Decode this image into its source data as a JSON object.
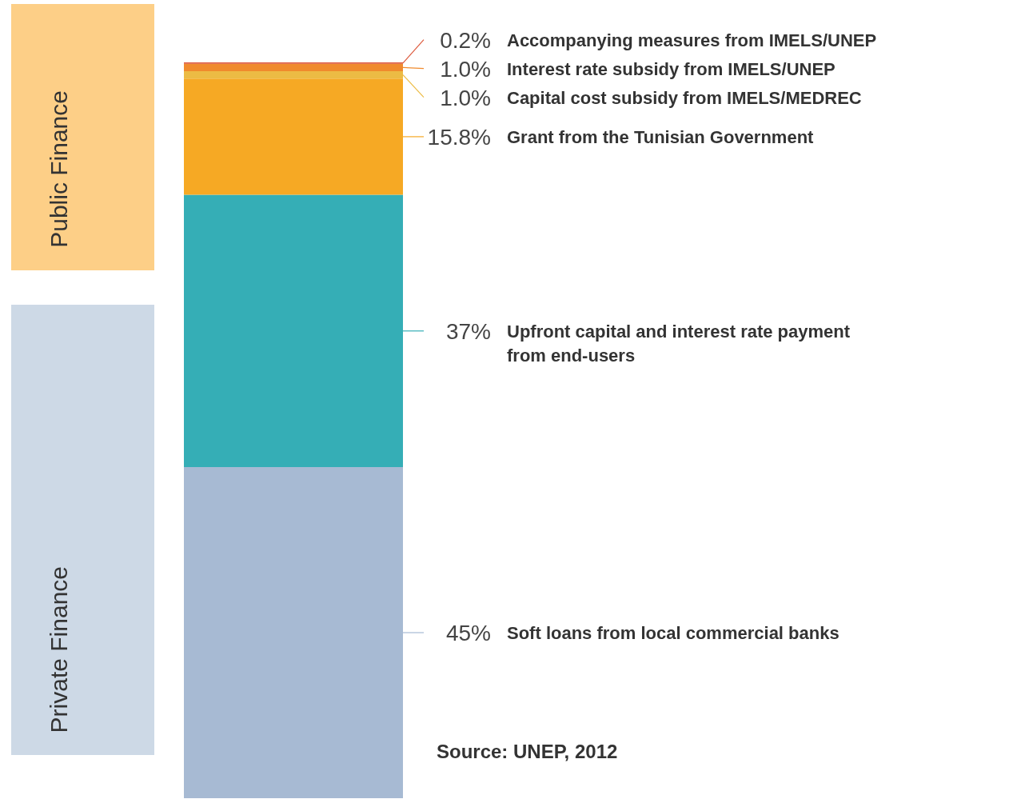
{
  "chart_data": {
    "type": "bar",
    "stacked": true,
    "tick_labels": false,
    "categories": [
      null
    ],
    "series": [
      {
        "name": "Soft loans from local commercial banks",
        "color": "#a7bad3",
        "values": [
          45
        ],
        "value_labels": [
          "45%"
        ]
      },
      {
        "name": "Upfront capital and interest rate payment from end-users",
        "color": "#35aeb6",
        "values": [
          37
        ],
        "value_labels": [
          "37%"
        ]
      },
      {
        "name": "Grant from the Tunisian Government",
        "color": "#f6a924",
        "values": [
          15.8
        ],
        "value_labels": [
          "15.8%"
        ]
      },
      {
        "name": "Capital cost subsidy from IMELS/MEDREC",
        "color": "#ecbb44",
        "values": [
          1.0
        ],
        "value_labels": [
          "1.0%"
        ]
      },
      {
        "name": "Interest rate subsidy from IMELS/UNEP",
        "color": "#f08a2d",
        "values": [
          1.0
        ],
        "value_labels": [
          "1.0%"
        ]
      },
      {
        "name": "Accompanying measures from IMELS/UNEP",
        "color": "#dd5a3d",
        "values": [
          0.2
        ],
        "value_labels": [
          "0.2%"
        ]
      }
    ],
    "annotations": [
      "Public Finance",
      "Private Finance",
      "Source: UNEP, 2012"
    ]
  }
}
